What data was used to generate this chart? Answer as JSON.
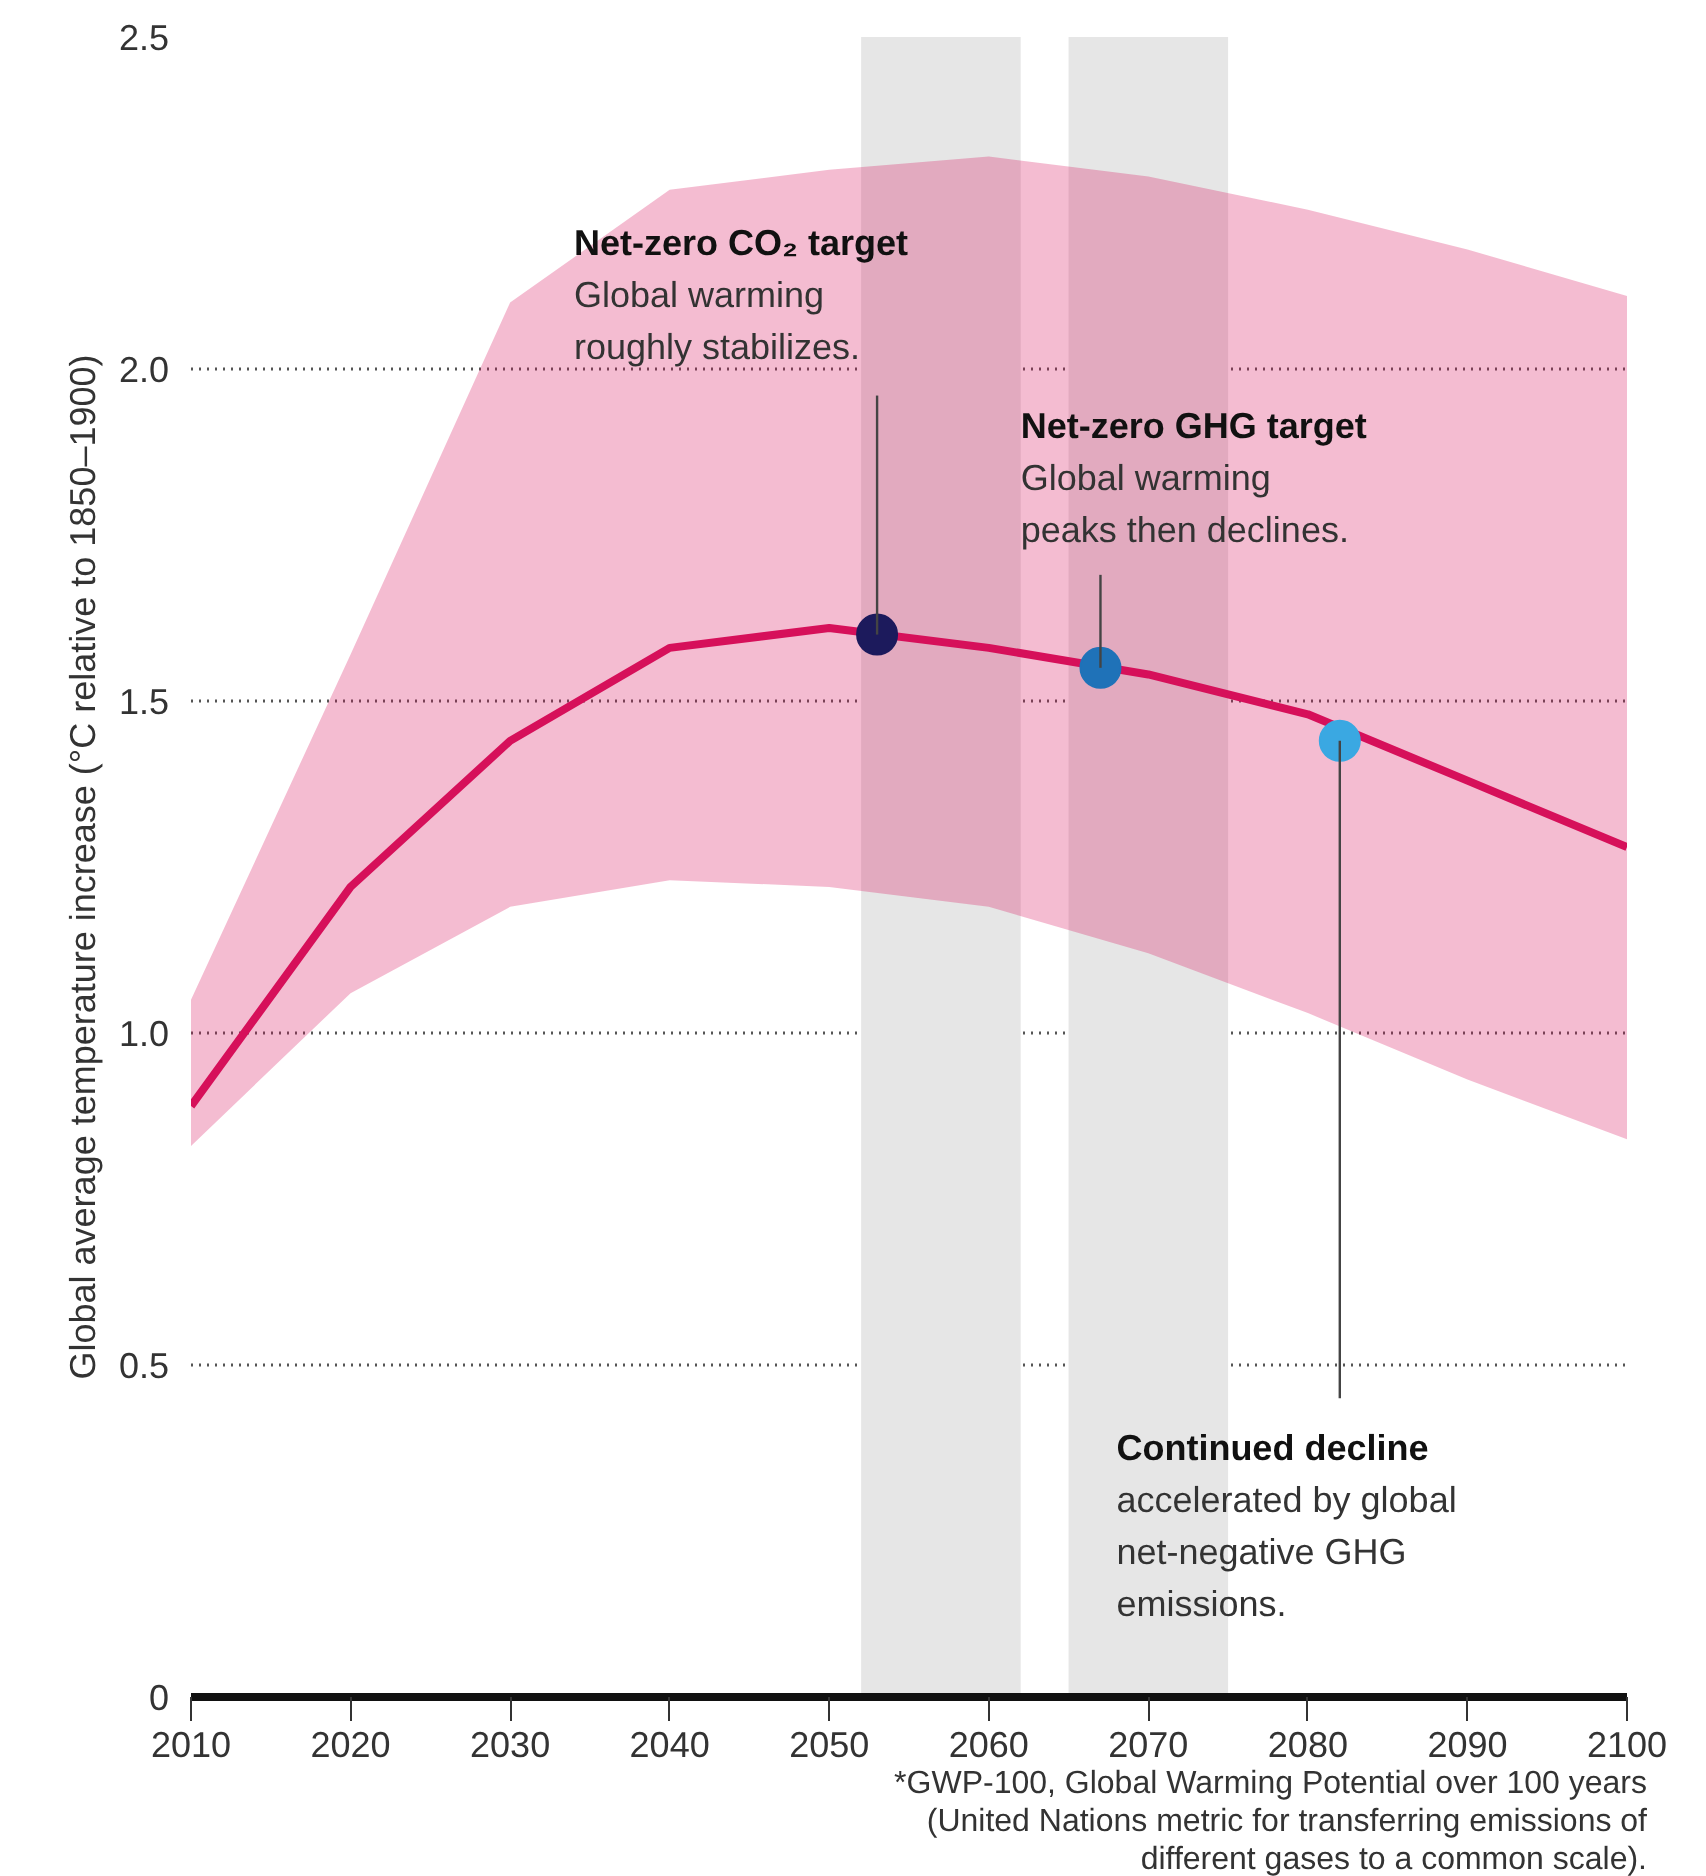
{
  "chart_data": {
    "type": "line",
    "ylabel": "Global average temperature increase (°C relative to 1850–1900)",
    "xlim": [
      2010,
      2100
    ],
    "xticks": [
      2010,
      2020,
      2030,
      2040,
      2050,
      2060,
      2070,
      2080,
      2090,
      2100
    ],
    "ylim": [
      0,
      2.5
    ],
    "yticks": [
      0,
      0.5,
      {
        "value": 1,
        "label": "1.0"
      },
      1.5,
      {
        "value": 2,
        "label": "2.0"
      },
      2.5
    ],
    "grid": "y",
    "series": [
      {
        "color": "#d6105a",
        "x": [
          2010,
          2020,
          2030,
          2040,
          2050,
          2060,
          2070,
          2080,
          2090,
          2100
        ],
        "values": [
          0.89,
          1.22,
          1.44,
          1.58,
          1.61,
          1.58,
          1.54,
          1.48,
          1.38,
          1.28
        ],
        "lower": [
          0.83,
          1.06,
          1.19,
          1.23,
          1.22,
          1.19,
          1.12,
          1.03,
          0.93,
          0.84
        ],
        "upper": [
          1.05,
          1.57,
          2.1,
          2.27,
          2.3,
          2.32,
          2.29,
          2.24,
          2.18,
          2.11
        ]
      },
      {
        "type": "scatter",
        "marker": "circle",
        "x": [
          2053,
          2067,
          2082
        ],
        "values": [
          1.6,
          1.55,
          1.44
        ],
        "colors": [
          "#1c1a5c",
          "#1f72b8",
          "#3aa8e2"
        ]
      }
    ],
    "bands": [
      {
        "axis": "x",
        "from": 2052,
        "to": 2062,
        "color": "#e6e6e6"
      },
      {
        "axis": "x",
        "from": 2065,
        "to": 2075,
        "color": "#e6e6e6"
      }
    ],
    "annotations": [
      {
        "text": "Net-zero CO₂ target\nGlobal warming\nroughly stabilizes.",
        "x": 2053,
        "y": 1.6
      },
      {
        "text": "Net-zero GHG target\nGlobal warming\npeaks then declines.",
        "x": 2067,
        "y": 1.55
      },
      {
        "text": "Continued decline\naccelerated by global\nnet-negative GHG\nemissions.",
        "x": 2082,
        "y": 1.44
      },
      "*GWP-100, Global Warming Potential over 100 years\n(United Nations metric for transferring emissions of\ndifferent gases to a common scale)."
    ]
  }
}
